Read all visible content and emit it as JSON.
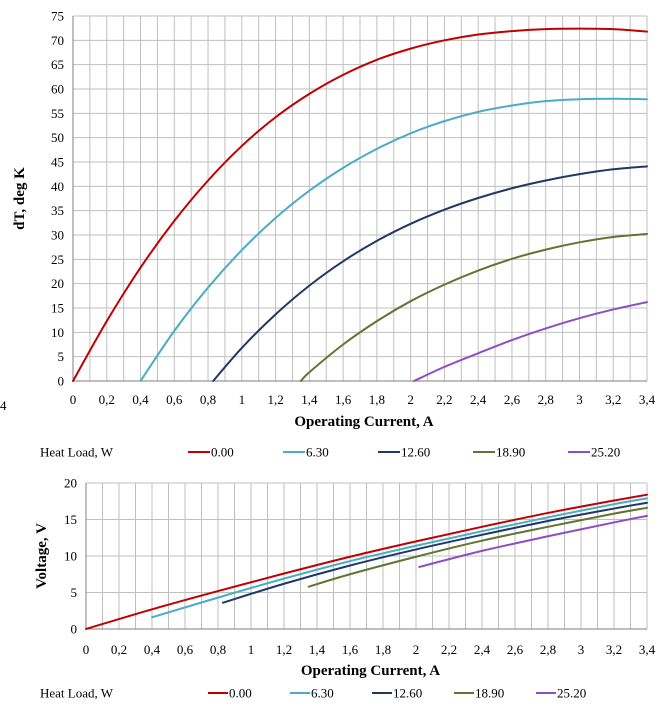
{
  "chart_data": [
    {
      "type": "line",
      "xlabel": "Operating Current, A",
      "ylabel": "dT, deg K",
      "xlim": [
        0,
        3.4
      ],
      "ylim": [
        0,
        75
      ],
      "xticks": [
        "0",
        "0,2",
        "0,4",
        "0,6",
        "0,8",
        "1",
        "1,2",
        "1,4",
        "1,6",
        "1,8",
        "2",
        "2,2",
        "2,4",
        "2,6",
        "2,8",
        "3",
        "3,2",
        "3,4"
      ],
      "yticks": [
        "0",
        "5",
        "10",
        "15",
        "20",
        "25",
        "30",
        "35",
        "40",
        "45",
        "50",
        "55",
        "60",
        "65",
        "70",
        "75"
      ],
      "stray_label": "4",
      "grid": true,
      "legend_title": "Heat Load, W",
      "legend_position": "bottom",
      "series": [
        {
          "name": "0.00",
          "color": "#c00000",
          "x": [
            0,
            0.2,
            0.4,
            0.6,
            0.8,
            1.0,
            1.2,
            1.4,
            1.6,
            1.8,
            2.0,
            2.2,
            2.4,
            2.6,
            2.8,
            3.0,
            3.2,
            3.4
          ],
          "y": [
            0,
            12.3,
            23.3,
            32.9,
            41.2,
            48.3,
            54.2,
            59.0,
            62.9,
            66.0,
            68.3,
            70.0,
            71.2,
            71.9,
            72.3,
            72.4,
            72.3,
            71.8
          ]
        },
        {
          "name": "6.30",
          "color": "#4bacc6",
          "x": [
            0.4,
            0.6,
            0.8,
            1.0,
            1.2,
            1.4,
            1.6,
            1.8,
            2.0,
            2.2,
            2.4,
            2.6,
            2.8,
            3.0,
            3.2,
            3.4
          ],
          "y": [
            0,
            10.3,
            19.2,
            26.9,
            33.5,
            39.1,
            43.8,
            47.7,
            50.9,
            53.4,
            55.3,
            56.6,
            57.5,
            57.9,
            58.0,
            57.9
          ]
        },
        {
          "name": "12.60",
          "color": "#1f3864",
          "x": [
            0.83,
            1.0,
            1.2,
            1.4,
            1.6,
            1.8,
            2.0,
            2.2,
            2.4,
            2.6,
            2.8,
            3.0,
            3.2,
            3.4
          ],
          "y": [
            0,
            6.8,
            13.7,
            19.6,
            24.6,
            28.8,
            32.3,
            35.2,
            37.6,
            39.6,
            41.2,
            42.5,
            43.5,
            44.1
          ]
        },
        {
          "name": "18.90",
          "color": "#5f7530",
          "x": [
            1.35,
            1.4,
            1.6,
            1.8,
            2.0,
            2.2,
            2.4,
            2.6,
            2.8,
            3.0,
            3.2,
            3.4
          ],
          "y": [
            0,
            1.8,
            7.5,
            12.3,
            16.4,
            19.8,
            22.7,
            25.1,
            27.0,
            28.5,
            29.6,
            30.2
          ]
        },
        {
          "name": "25.20",
          "color": "#8e4dc0",
          "x": [
            2.02,
            2.2,
            2.4,
            2.6,
            2.8,
            3.0,
            3.2,
            3.4
          ],
          "y": [
            0,
            2.9,
            5.7,
            8.4,
            10.8,
            12.9,
            14.7,
            16.2
          ]
        }
      ]
    },
    {
      "type": "line",
      "xlabel": "Operating Current, A",
      "ylabel": "Voltage, V",
      "xlim": [
        0,
        3.4
      ],
      "ylim": [
        0,
        20
      ],
      "xticks": [
        "0",
        "0,2",
        "0,4",
        "0,6",
        "0,8",
        "1",
        "1,2",
        "1,4",
        "1,6",
        "1,8",
        "2",
        "2,2",
        "2,4",
        "2,6",
        "2,8",
        "3",
        "3,2",
        "3,4"
      ],
      "yticks": [
        "0",
        "5",
        "10",
        "15",
        "20"
      ],
      "grid": true,
      "legend_title": "Heat Load, W",
      "legend_position": "bottom",
      "series": [
        {
          "name": "0.00",
          "color": "#c00000",
          "x": [
            0,
            0.4,
            0.8,
            1.2,
            1.6,
            2.0,
            2.4,
            2.8,
            3.2,
            3.4
          ],
          "y": [
            0,
            2.7,
            5.2,
            7.6,
            9.9,
            12.0,
            14.0,
            15.9,
            17.6,
            18.4
          ]
        },
        {
          "name": "6.30",
          "color": "#4bacc6",
          "x": [
            0.4,
            0.8,
            1.2,
            1.6,
            2.0,
            2.4,
            2.8,
            3.2,
            3.4
          ],
          "y": [
            1.6,
            4.3,
            6.9,
            9.3,
            11.4,
            13.4,
            15.3,
            17.1,
            17.9
          ]
        },
        {
          "name": "12.60",
          "color": "#1f3864",
          "x": [
            0.83,
            1.2,
            1.6,
            2.0,
            2.4,
            2.8,
            3.2,
            3.4
          ],
          "y": [
            3.6,
            6.2,
            8.7,
            10.9,
            12.9,
            14.8,
            16.5,
            17.3
          ]
        },
        {
          "name": "18.90",
          "color": "#5f7530",
          "x": [
            1.35,
            1.6,
            2.0,
            2.4,
            2.8,
            3.2,
            3.4
          ],
          "y": [
            5.8,
            7.5,
            9.9,
            12.1,
            14.0,
            15.8,
            16.6
          ]
        },
        {
          "name": "25.20",
          "color": "#8e4dc0",
          "x": [
            2.02,
            2.4,
            2.8,
            3.2,
            3.4
          ],
          "y": [
            8.5,
            10.7,
            12.7,
            14.6,
            15.5
          ]
        }
      ]
    }
  ]
}
